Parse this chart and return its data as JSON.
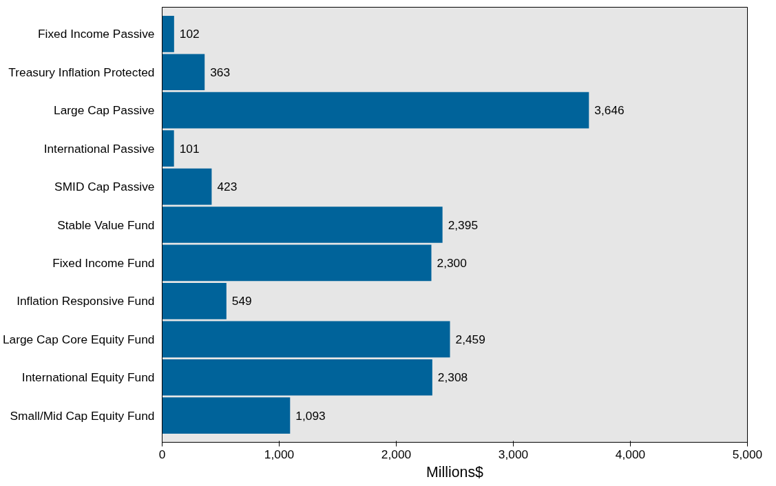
{
  "chart_data": {
    "type": "bar",
    "orientation": "horizontal",
    "xlabel": "Millions$",
    "categories": [
      "Fixed Income Passive",
      "Treasury Inflation Protected",
      "Large Cap Passive",
      "International Passive",
      "SMID Cap Passive",
      "Stable Value Fund",
      "Fixed Income Fund",
      "Inflation Responsive Fund",
      "Large Cap Core Equity Fund",
      "International Equity Fund",
      "Small/Mid Cap Equity Fund"
    ],
    "values": [
      102,
      363,
      3646,
      101,
      423,
      2395,
      2300,
      549,
      2459,
      2308,
      1093
    ],
    "value_labels": [
      "102",
      "363",
      "3,646",
      "101",
      "423",
      "2,395",
      "2,300",
      "549",
      "2,459",
      "2,308",
      "1,093"
    ],
    "color": "#00639a",
    "xlim": [
      0,
      5000
    ],
    "xticks": [
      {
        "value": 0,
        "label": "0"
      },
      {
        "value": 1000,
        "label": "1,000"
      },
      {
        "value": 2000,
        "label": "2,000"
      },
      {
        "value": 3000,
        "label": "3,000"
      },
      {
        "value": 4000,
        "label": "4,000"
      },
      {
        "value": 5000,
        "label": "5,000"
      }
    ],
    "grid": false
  }
}
